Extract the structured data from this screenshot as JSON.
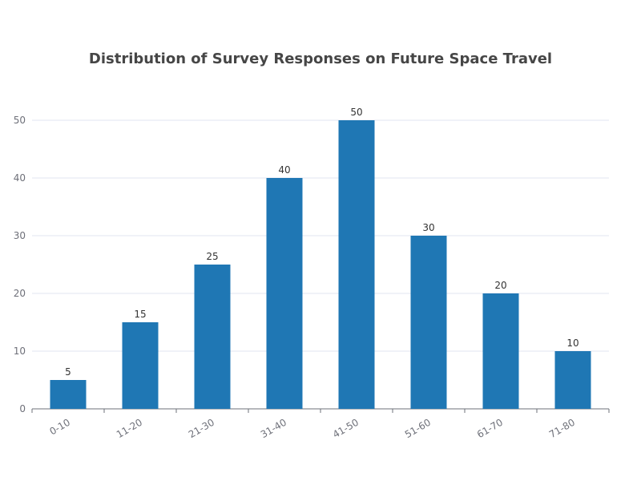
{
  "chart_data": {
    "type": "bar",
    "title": "Distribution of Survey Responses on Future Space Travel",
    "xlabel": "",
    "ylabel": "",
    "categories": [
      "0-10",
      "11-20",
      "21-30",
      "31-40",
      "41-50",
      "51-60",
      "61-70",
      "71-80"
    ],
    "values": [
      5,
      15,
      25,
      40,
      50,
      30,
      20,
      10
    ],
    "ylim": [
      0,
      50
    ],
    "yticks": [
      0,
      10,
      20,
      30,
      40,
      50
    ],
    "grid": true,
    "bar_color": "#1f77b4",
    "data_labels": true,
    "x_tick_rotation_deg": -30
  }
}
